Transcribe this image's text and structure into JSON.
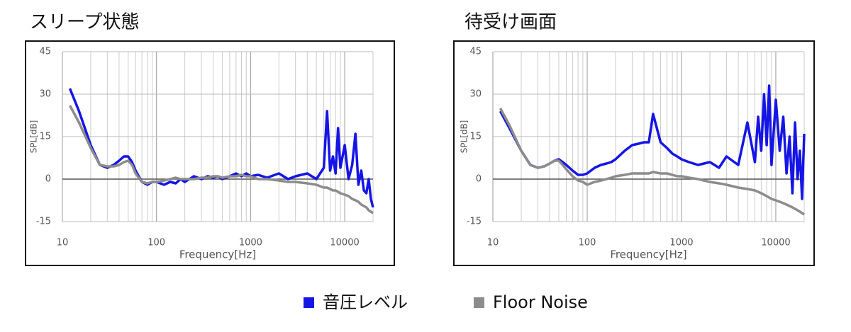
{
  "chart_data": [
    {
      "type": "line",
      "title": "スリープ状態",
      "xlabel": "Frequency[Hz]",
      "ylabel": "SPL[dB]",
      "xscale": "log",
      "grid": true,
      "xlim": [
        10,
        20000
      ],
      "xticks": [
        10,
        100,
        1000,
        10000
      ],
      "ylim": [
        -15,
        45
      ],
      "yticks": [
        -15,
        0,
        15,
        30,
        45
      ],
      "x": [
        12,
        15,
        20,
        25,
        30,
        35,
        40,
        45,
        50,
        55,
        60,
        70,
        80,
        90,
        100,
        120,
        140,
        160,
        180,
        200,
        250,
        300,
        350,
        400,
        450,
        500,
        600,
        700,
        800,
        900,
        1000,
        1200,
        1500,
        2000,
        2500,
        3000,
        4000,
        5000,
        6000,
        6500,
        7000,
        7500,
        8000,
        8500,
        9000,
        10000,
        11000,
        12000,
        13000,
        14000,
        15000,
        16000,
        17000,
        18000,
        19000,
        20000
      ],
      "series": [
        {
          "color": "#1515e6",
          "values": [
            32,
            24,
            12,
            5,
            4,
            5,
            6.5,
            8,
            8,
            6,
            3,
            -1,
            -2,
            -1,
            -1,
            -2,
            -1,
            -1.5,
            0,
            -1,
            1,
            0,
            1,
            0.5,
            1,
            0,
            1,
            2,
            1,
            2,
            1,
            1.5,
            0.5,
            2,
            0,
            1,
            2,
            0,
            4,
            24,
            3,
            8,
            2,
            18,
            4,
            12,
            0,
            5,
            16,
            -2,
            3,
            -4,
            -5,
            0,
            -7,
            -10
          ]
        },
        {
          "color": "#8c8c8c",
          "values": [
            26,
            20,
            11,
            5,
            4.5,
            4.5,
            5,
            6,
            6.5,
            5,
            2,
            -1,
            -1.5,
            -1,
            -1,
            -0.5,
            0,
            0.5,
            0,
            0,
            0,
            0.5,
            0.5,
            1,
            1,
            0.5,
            1,
            1,
            1.5,
            1,
            1,
            0,
            0,
            -0.5,
            -1,
            -1,
            -1.5,
            -2,
            -3,
            -3,
            -3.5,
            -4,
            -4,
            -4.5,
            -5,
            -5.5,
            -6,
            -7,
            -7.5,
            -8,
            -9,
            -9.5,
            -10,
            -11,
            -11.5,
            -12
          ]
        }
      ]
    },
    {
      "type": "line",
      "title": "待受け画面",
      "xlabel": "Frequency[Hz]",
      "ylabel": "SPL[dB]",
      "xscale": "log",
      "grid": true,
      "xlim": [
        10,
        20000
      ],
      "xticks": [
        10,
        100,
        1000,
        10000
      ],
      "ylim": [
        -15,
        45
      ],
      "yticks": [
        -15,
        0,
        15,
        30,
        45
      ],
      "x": [
        12,
        15,
        20,
        25,
        30,
        35,
        40,
        45,
        50,
        55,
        60,
        70,
        80,
        90,
        100,
        120,
        140,
        160,
        180,
        200,
        250,
        300,
        350,
        400,
        450,
        500,
        600,
        700,
        800,
        900,
        1000,
        1200,
        1500,
        2000,
        2500,
        3000,
        4000,
        5000,
        6000,
        6500,
        7000,
        7500,
        8000,
        8500,
        9000,
        10000,
        11000,
        12000,
        13000,
        14000,
        15000,
        16000,
        17000,
        18000,
        19000,
        20000
      ],
      "series": [
        {
          "color": "#1515e6",
          "values": [
            24,
            18,
            10,
            5,
            4,
            4.5,
            5.5,
            6.5,
            7,
            6,
            5,
            3,
            1.5,
            1.5,
            2,
            4,
            5,
            5.5,
            6,
            7,
            10,
            12,
            12.5,
            13,
            13,
            23,
            13,
            11,
            9,
            8,
            7,
            6,
            5,
            6,
            4,
            8,
            5,
            20,
            6,
            22,
            10,
            30,
            12,
            33,
            5,
            28,
            10,
            22,
            2,
            15,
            -5,
            20,
            0,
            10,
            -7,
            16
          ]
        },
        {
          "color": "#8c8c8c",
          "values": [
            25,
            19,
            10,
            5,
            4,
            4.5,
            5.5,
            6.5,
            6.5,
            5,
            3.5,
            1,
            -0.5,
            -1,
            -2,
            -1,
            -0.5,
            0,
            0.5,
            1,
            1.5,
            2,
            2,
            2,
            2,
            2.5,
            2,
            2,
            1.5,
            1,
            1,
            0.5,
            0,
            -1,
            -1.5,
            -2,
            -3,
            -3.5,
            -4,
            -4.5,
            -5,
            -5.5,
            -6,
            -6.5,
            -7,
            -7.5,
            -8,
            -8.5,
            -9,
            -9.5,
            -10,
            -10.5,
            -11,
            -11.5,
            -12,
            -12.5
          ]
        }
      ]
    }
  ],
  "legend": [
    {
      "name": "音圧レベル",
      "color": "#1515e6"
    },
    {
      "name": "Floor Noise",
      "color": "#8c8c8c"
    }
  ]
}
